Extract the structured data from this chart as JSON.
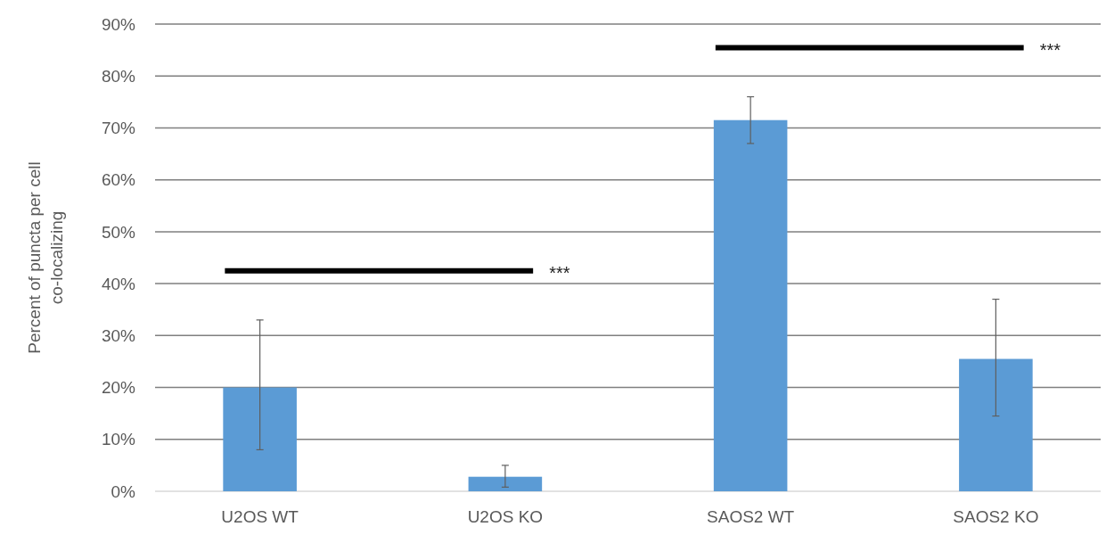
{
  "chart_data": {
    "type": "bar",
    "ylabel": "Percent of puncta per cell\nco-localizing",
    "categories": [
      "U2OS WT",
      "U2OS KO",
      "SAOS2 WT",
      "SAOS2 KO"
    ],
    "values": [
      20,
      2.8,
      71.5,
      25.5
    ],
    "errors": [
      [
        8,
        33
      ],
      [
        0.8,
        5
      ],
      [
        67,
        76
      ],
      [
        14.5,
        37
      ]
    ],
    "color": "#5b9bd5",
    "ylim": [
      0,
      90
    ],
    "yticks": [
      {
        "value": 0,
        "label": "0%"
      },
      {
        "value": 10,
        "label": "10%"
      },
      {
        "value": 20,
        "label": "20%"
      },
      {
        "value": 30,
        "label": "30%"
      },
      {
        "value": 40,
        "label": "40%"
      },
      {
        "value": 50,
        "label": "50%"
      },
      {
        "value": 60,
        "label": "60%"
      },
      {
        "value": 70,
        "label": "70%"
      },
      {
        "value": 80,
        "label": "80%"
      },
      {
        "value": 90,
        "label": "90%"
      }
    ],
    "grid": "y",
    "annotations": [
      "***",
      "***"
    ]
  }
}
